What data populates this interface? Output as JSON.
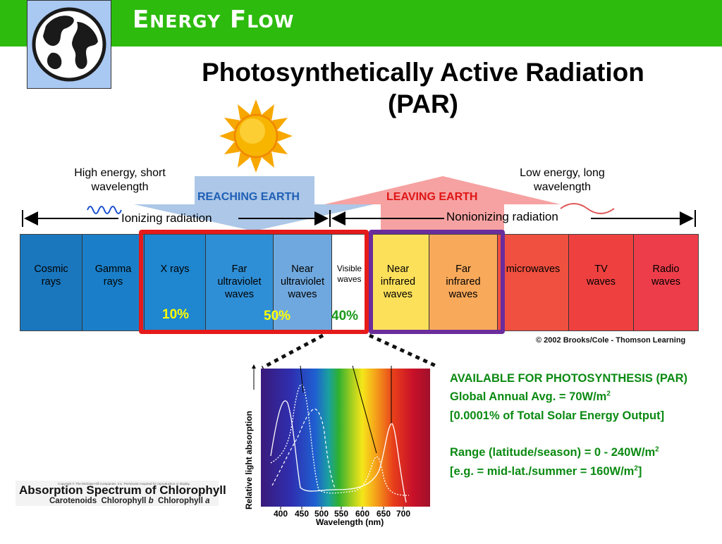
{
  "header": {
    "title_first_letter": "E",
    "title_rest": "NERGY",
    "title_second_first": "F",
    "title_second_rest": "LOW",
    "bar_color": "#2dbb0e"
  },
  "logo": {
    "icon": "globe-icon"
  },
  "subtitle": {
    "line1": "Photosynthetically Active Radiation",
    "line2": "(PAR)"
  },
  "sun": {
    "icon": "sun-icon"
  },
  "labels": {
    "high_energy_line1": "High energy, short",
    "high_energy_line2": "wavelength",
    "low_energy_line1": "Low energy, long",
    "low_energy_line2": "wavelength",
    "reaching": "REACHING EARTH",
    "leaving": "LEAVING EARTH",
    "ionizing": "Ionizing radiation",
    "nonionizing": "Nonionizing radiation"
  },
  "spectrum": {
    "bands": [
      {
        "line1": "Cosmic",
        "line2": "rays",
        "line3": "",
        "color": "#1a77be"
      },
      {
        "line1": "Gamma",
        "line2": "rays",
        "line3": "",
        "color": "#1a7fc8"
      },
      {
        "line1": "X rays",
        "line2": "",
        "line3": "",
        "color": "#1f86d0"
      },
      {
        "line1": "Far",
        "line2": "ultraviolet",
        "line3": "waves",
        "color": "#2f8fd6"
      },
      {
        "line1": "Near",
        "line2": "ultraviolet",
        "line3": "waves",
        "color": "#6fa8de"
      },
      {
        "line1": "Visible",
        "line2": "waves",
        "line3": "",
        "color": "#ffffff"
      },
      {
        "line1": "Near",
        "line2": "infrared",
        "line3": "waves",
        "color": "#fde05a"
      },
      {
        "line1": "Far",
        "line2": "infrared",
        "line3": "waves",
        "color": "#f9a95a"
      },
      {
        "line1": "microwaves",
        "line2": "",
        "line3": "",
        "color": "#f0503f"
      },
      {
        "line1": "TV",
        "line2": "waves",
        "line3": "",
        "color": "#ef4040"
      },
      {
        "line1": "Radio",
        "line2": "waves",
        "line3": "",
        "color": "#ee3d4a"
      }
    ],
    "pct_xray": "10%",
    "pct_nearuv": "50%",
    "pct_visible": "40%"
  },
  "copyright": "© 2002 Brooks/Cole - Thomson Learning",
  "absorption": {
    "ylabel": "Relative light absorption",
    "xlabel": "Wavelength (nm)",
    "ticks": [
      "400",
      "450",
      "500",
      "550",
      "600",
      "650",
      "700"
    ],
    "caption_note": "Copyright © The McGraw-Hill Companies, Inc. Permission required for reproduction or display.",
    "title": "Absorption Spectrum of Chlorophyll",
    "legend_carotenoids": "Carotenoids",
    "legend_chl_b_prefix": "Chlorophyll",
    "legend_chl_b_letter": "b",
    "legend_chl_a_prefix": "Chlorophyll",
    "legend_chl_a_letter": "a"
  },
  "info": {
    "line1": "AVAILABLE FOR PHOTOSYNTHESIS (PAR)",
    "line2_pre": "Global Annual Avg. = 70W/m",
    "line2_sup": "2",
    "line3": "[0.0001% of Total Solar Energy Output]",
    "line4_pre": "Range (latitude/season) = 0 - 240W/m",
    "line4_sup": "2",
    "line5_pre": "[e.g. = mid-lat./summer = 160W/m",
    "line5_sup": "2",
    "line5_post": "]",
    "color": "#0b8a12"
  }
}
